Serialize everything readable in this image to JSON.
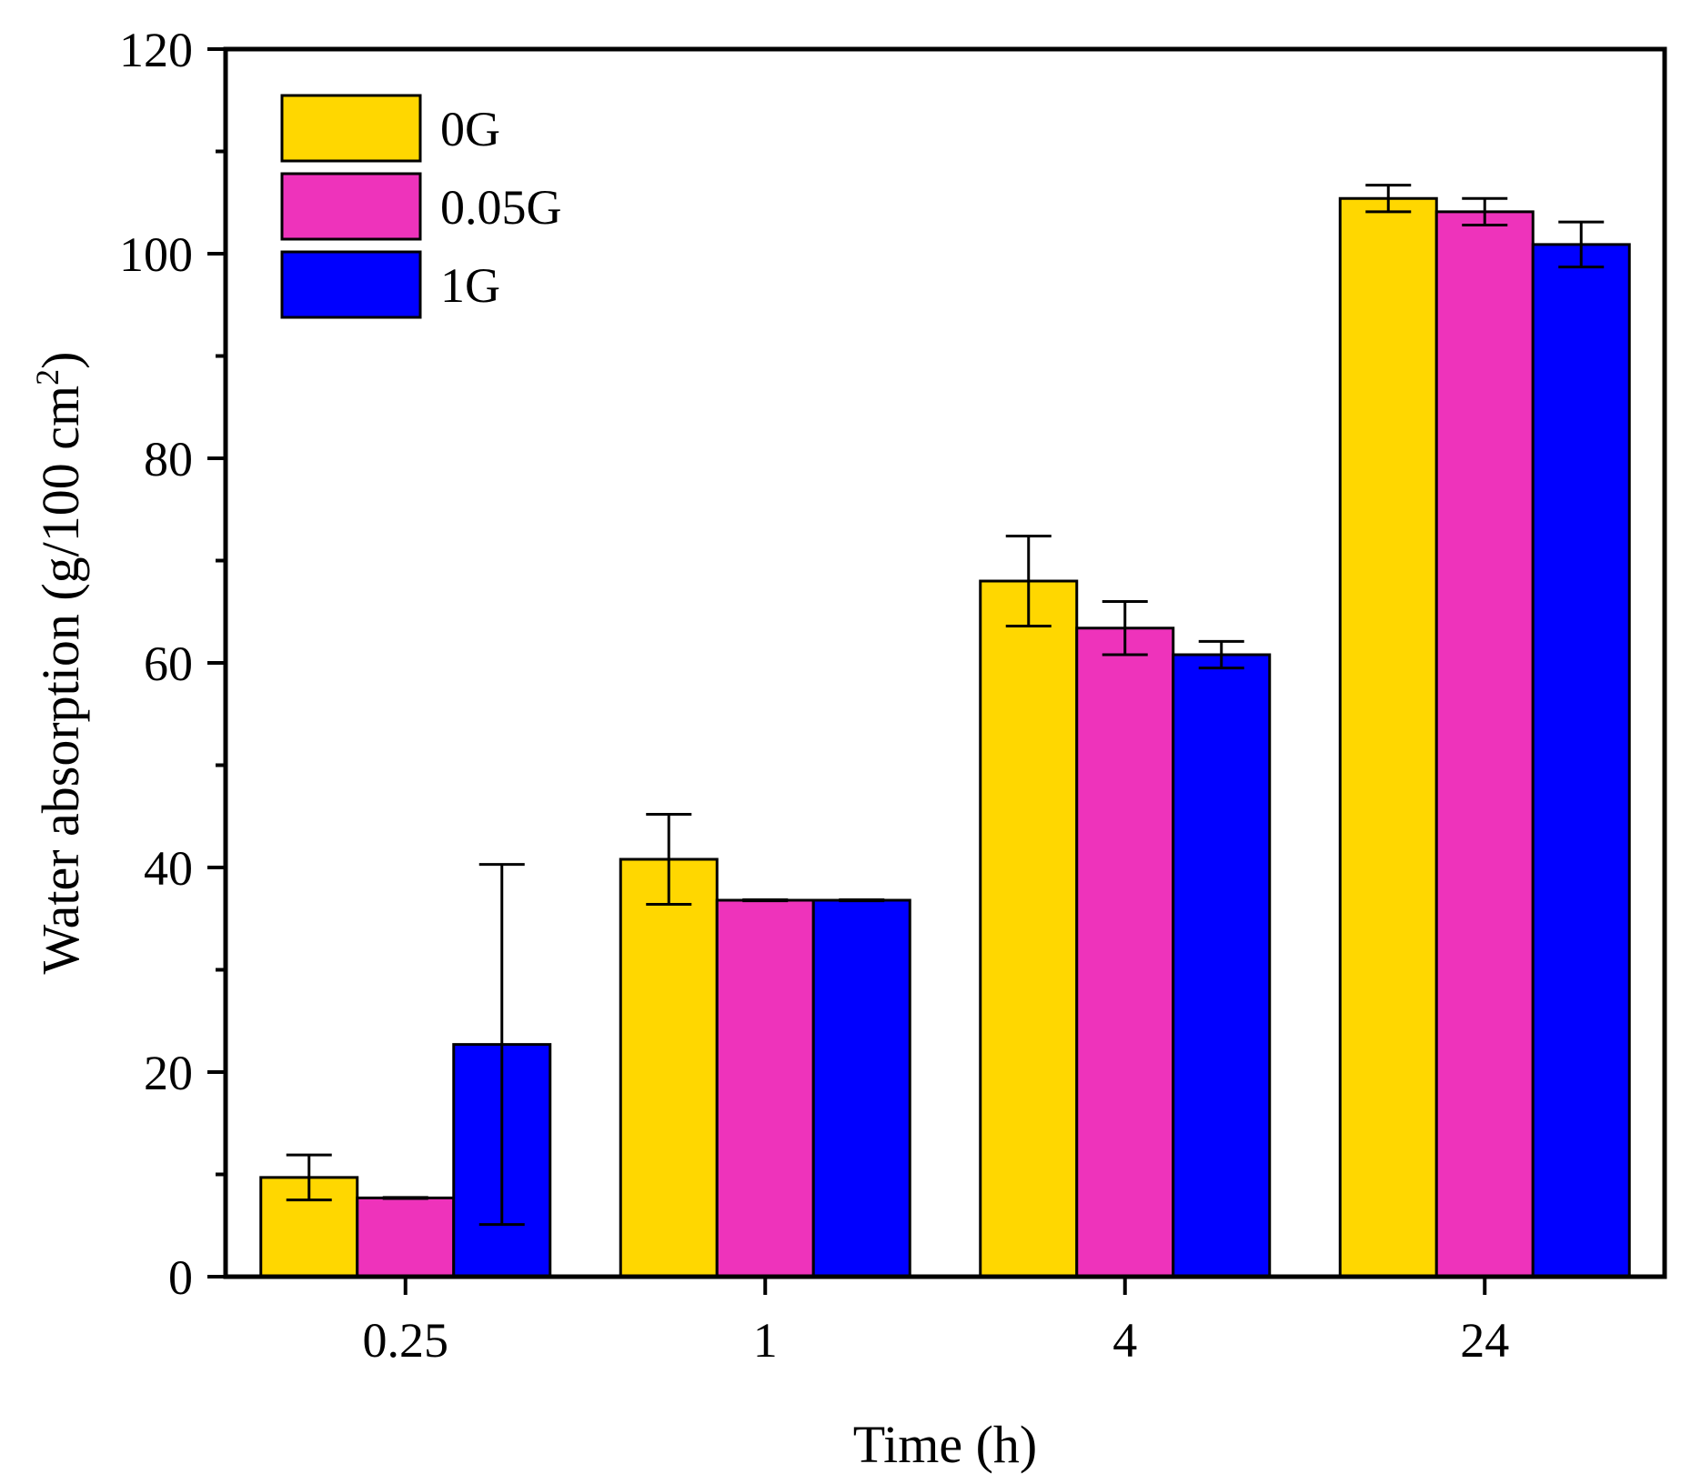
{
  "chart_data": {
    "type": "bar",
    "title": "",
    "xlabel": "Time (h)",
    "ylabel": "Water absorption (g/100 cm",
    "ylabel_sup": "2",
    "ylabel_close": ")",
    "categories": [
      "0.25",
      "1",
      "4",
      "24"
    ],
    "ylim": [
      0,
      120
    ],
    "yticks": [
      0,
      20,
      40,
      60,
      80,
      100,
      120
    ],
    "ytick_labels": [
      "0",
      "20",
      "40",
      "60",
      "80",
      "100",
      "120"
    ],
    "legend_position": "top-left",
    "grid": false,
    "series": [
      {
        "name": "0G",
        "color": "#FFD700",
        "values": [
          9.7,
          40.8,
          68.0,
          105.4
        ],
        "errors": [
          2.2,
          4.4,
          4.4,
          1.3
        ]
      },
      {
        "name": "0.05G",
        "color": "#EE33BB",
        "values": [
          7.7,
          36.8,
          63.4,
          104.1
        ],
        "errors": [
          0.05,
          0.05,
          2.6,
          1.3
        ]
      },
      {
        "name": "1G",
        "color": "#0000FF",
        "values": [
          22.7,
          36.8,
          60.8,
          100.9
        ],
        "errors": [
          17.6,
          0.05,
          1.3,
          2.2
        ]
      }
    ]
  }
}
